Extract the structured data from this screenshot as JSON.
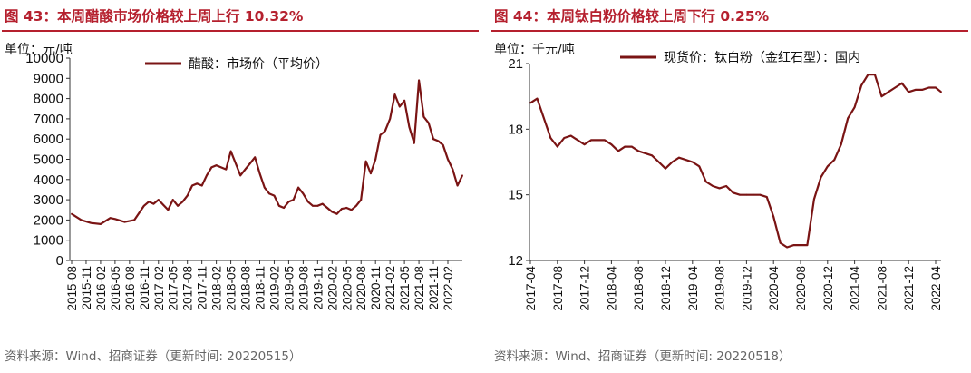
{
  "left": {
    "title": "图 43：本周醋酸市场价格较上周上行 10.32%",
    "unit": "单位：元/吨",
    "source": "资料来源：Wind、招商证券（更新时间: 20220515）",
    "chart_data": {
      "type": "line",
      "title": "图 43：本周醋酸市场价格较上周上行 10.32%",
      "ylim": [
        0,
        10000
      ],
      "yticks": [
        "10000",
        "9000",
        "8000",
        "7000",
        "6000",
        "5000",
        "4000",
        "3000",
        "2000",
        "1000",
        "0"
      ],
      "xticks": [
        "2015-08",
        "2015-11",
        "2016-02",
        "2016-05",
        "2016-08",
        "2016-11",
        "2017-02",
        "2017-05",
        "2017-08",
        "2017-11",
        "2018-02",
        "2018-05",
        "2018-08",
        "2018-11",
        "2019-02",
        "2019-05",
        "2019-08",
        "2019-11",
        "2020-02",
        "2020-05",
        "2020-08",
        "2020-11",
        "2021-02",
        "2021-05",
        "2021-08",
        "2021-11",
        "2022-02"
      ],
      "legend_position": "top",
      "series": [
        {
          "name": "醋酸：市场价（平均价）",
          "color": "#7a1414",
          "x": [
            "2015-08",
            "2015-10",
            "2015-12",
            "2016-02",
            "2016-04",
            "2016-05",
            "2016-07",
            "2016-09",
            "2016-11",
            "2016-12",
            "2017-01",
            "2017-02",
            "2017-03",
            "2017-04",
            "2017-05",
            "2017-06",
            "2017-07",
            "2017-08",
            "2017-09",
            "2017-10",
            "2017-11",
            "2017-12",
            "2018-01",
            "2018-02",
            "2018-03",
            "2018-04",
            "2018-05",
            "2018-06",
            "2018-07",
            "2018-08",
            "2018-09",
            "2018-10",
            "2018-11",
            "2018-12",
            "2019-01",
            "2019-02",
            "2019-03",
            "2019-04",
            "2019-05",
            "2019-06",
            "2019-07",
            "2019-08",
            "2019-09",
            "2019-10",
            "2019-11",
            "2019-12",
            "2020-01",
            "2020-02",
            "2020-03",
            "2020-04",
            "2020-05",
            "2020-06",
            "2020-07",
            "2020-08",
            "2020-09",
            "2020-10",
            "2020-11",
            "2020-12",
            "2021-01",
            "2021-02",
            "2021-03",
            "2021-04",
            "2021-05",
            "2021-06",
            "2021-07",
            "2021-08",
            "2021-09",
            "2021-10",
            "2021-11",
            "2021-12",
            "2022-01",
            "2022-02",
            "2022-03",
            "2022-04",
            "2022-05"
          ],
          "values": [
            2300,
            2000,
            1850,
            1800,
            2100,
            2050,
            1900,
            2000,
            2700,
            2900,
            2800,
            3000,
            2750,
            2500,
            3000,
            2700,
            2900,
            3200,
            3700,
            3800,
            3700,
            4200,
            4600,
            4700,
            4600,
            4500,
            5400,
            4800,
            4200,
            4500,
            4800,
            5100,
            4300,
            3600,
            3300,
            3200,
            2700,
            2600,
            2900,
            3000,
            3600,
            3300,
            2900,
            2700,
            2700,
            2800,
            2600,
            2400,
            2300,
            2550,
            2600,
            2500,
            2700,
            3000,
            4900,
            4300,
            5000,
            6200,
            6400,
            7000,
            8200,
            7600,
            7900,
            6600,
            5800,
            8900,
            7100,
            6800,
            6000,
            5900,
            5700,
            5000,
            4500,
            3700,
            4200
          ]
        }
      ]
    }
  },
  "right": {
    "title": "图 44：本周钛白粉价格较上周下行 0.25%",
    "unit": "单位：千元/吨",
    "source": "资料来源：Wind、招商证券（更新时间: 20220518）",
    "chart_data": {
      "type": "line",
      "title": "图 44：本周钛白粉价格较上周下行 0.25%",
      "ylim": [
        12,
        21
      ],
      "yticks": [
        "21",
        "18",
        "15",
        "12"
      ],
      "xticks": [
        "2017-04",
        "2017-08",
        "2017-12",
        "2018-04",
        "2018-08",
        "2018-12",
        "2019-04",
        "2019-08",
        "2019-12",
        "2020-04",
        "2020-08",
        "2020-12",
        "2021-04",
        "2021-08",
        "2021-12",
        "2022-04"
      ],
      "legend_position": "top",
      "series": [
        {
          "name": "现货价：钛白粉（金红石型）：国内",
          "color": "#7a1414",
          "x": [
            "2017-04",
            "2017-05",
            "2017-06",
            "2017-07",
            "2017-08",
            "2017-09",
            "2017-10",
            "2017-11",
            "2017-12",
            "2018-01",
            "2018-02",
            "2018-03",
            "2018-04",
            "2018-05",
            "2018-06",
            "2018-07",
            "2018-08",
            "2018-09",
            "2018-10",
            "2018-11",
            "2018-12",
            "2019-01",
            "2019-02",
            "2019-03",
            "2019-04",
            "2019-05",
            "2019-06",
            "2019-07",
            "2019-08",
            "2019-09",
            "2019-10",
            "2019-11",
            "2019-12",
            "2020-01",
            "2020-02",
            "2020-03",
            "2020-04",
            "2020-05",
            "2020-06",
            "2020-07",
            "2020-08",
            "2020-09",
            "2020-10",
            "2020-11",
            "2020-12",
            "2021-01",
            "2021-02",
            "2021-03",
            "2021-04",
            "2021-05",
            "2021-06",
            "2021-07",
            "2021-08",
            "2021-09",
            "2021-10",
            "2021-11",
            "2021-12",
            "2022-01",
            "2022-02",
            "2022-03",
            "2022-04",
            "2022-05"
          ],
          "values": [
            19.2,
            19.4,
            18.5,
            17.6,
            17.2,
            17.6,
            17.7,
            17.5,
            17.3,
            17.5,
            17.5,
            17.5,
            17.3,
            17.0,
            17.2,
            17.2,
            17.0,
            16.9,
            16.8,
            16.5,
            16.2,
            16.5,
            16.7,
            16.6,
            16.5,
            16.3,
            15.6,
            15.4,
            15.3,
            15.4,
            15.1,
            15.0,
            15.0,
            15.0,
            15.0,
            14.9,
            14.0,
            12.8,
            12.6,
            12.7,
            12.7,
            12.7,
            14.8,
            15.8,
            16.3,
            16.6,
            17.3,
            18.5,
            19.0,
            20.0,
            20.5,
            20.5,
            19.5,
            19.7,
            19.9,
            20.1,
            19.7,
            19.8,
            19.8,
            19.9,
            19.9,
            19.7
          ]
        }
      ]
    }
  }
}
